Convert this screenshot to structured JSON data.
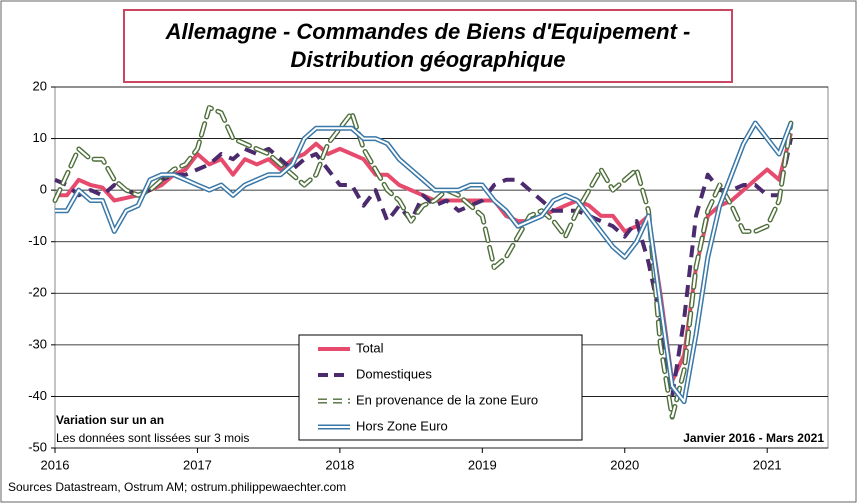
{
  "chart_data": {
    "type": "line",
    "title": [
      "Allemagne - Commandes de Biens d'Equipement -",
      "Distribution géographique"
    ],
    "categories": [
      "2016",
      null,
      null,
      null,
      null,
      null,
      null,
      null,
      null,
      null,
      null,
      null,
      "2017",
      null,
      null,
      null,
      null,
      null,
      null,
      null,
      null,
      null,
      null,
      null,
      "2018",
      null,
      null,
      null,
      null,
      null,
      null,
      null,
      null,
      null,
      null,
      null,
      "2019",
      null,
      null,
      null,
      null,
      null,
      null,
      null,
      null,
      null,
      null,
      null,
      "2020",
      null,
      null,
      null,
      null,
      null,
      null,
      null,
      null,
      null,
      null,
      null,
      "2021",
      null,
      null
    ],
    "series": [
      {
        "name": "Total",
        "color": "#e64b6e",
        "style": "solid",
        "values": [
          -1,
          -1,
          2,
          1,
          0.5,
          -2,
          -1.5,
          -1,
          0,
          1,
          3,
          4,
          7,
          5,
          6,
          3,
          6,
          5,
          6,
          4,
          6,
          7,
          9,
          7,
          8,
          7,
          6,
          3,
          3,
          1,
          0,
          -1,
          -2,
          -2,
          -2,
          -2,
          -2,
          -2,
          -5,
          -6,
          -6,
          -5,
          -4,
          -3,
          -2,
          -3,
          -5,
          -5,
          -8,
          -7,
          -5,
          -20,
          -37,
          -32,
          -15,
          -5,
          -3,
          -2,
          0,
          2,
          4,
          2,
          11
        ]
      },
      {
        "name": "Domestiques",
        "color": "#4b2a6e",
        "style": "dashed",
        "values": [
          2,
          1,
          -1,
          0,
          -1,
          1,
          0,
          -1,
          0,
          2,
          3,
          3,
          4,
          5,
          7,
          6,
          8,
          7,
          8,
          6,
          4,
          6,
          7,
          4,
          1,
          1,
          -3,
          0,
          -6,
          -3,
          -6,
          -1,
          -3,
          -2,
          -4,
          -3,
          -2,
          1,
          2,
          2,
          0,
          -2,
          -4,
          -4,
          -4,
          -5,
          -6,
          -7,
          -9,
          -6,
          -14,
          -25,
          -40,
          -25,
          -5,
          3,
          0,
          0,
          1,
          1,
          -1,
          -1,
          10
        ]
      },
      {
        "name": "En provenance de la zone Euro",
        "color": "#4e6e3a",
        "style": "outlined-dash",
        "values": [
          -2,
          3,
          8,
          6,
          6,
          2,
          0,
          -1,
          0,
          2,
          4,
          5,
          8,
          16,
          15,
          10,
          9,
          8,
          7,
          5,
          3,
          1,
          3,
          9,
          12,
          15,
          8,
          4,
          0,
          -2,
          -6,
          -3,
          -2,
          0,
          -1,
          -3,
          -5,
          -15,
          -13,
          -9,
          -5,
          -4,
          -6,
          -9,
          -4,
          0,
          4,
          0,
          2,
          4,
          -4,
          -30,
          -44,
          -35,
          -15,
          -4,
          1,
          -3,
          -8,
          -8,
          -7,
          -2,
          13
        ]
      },
      {
        "name": "Hors Zone Euro",
        "color": "#3a78a8",
        "style": "double",
        "values": [
          -4,
          -4,
          0,
          -2,
          -2,
          -8,
          -4,
          -3,
          2,
          3,
          3,
          2,
          1,
          0,
          1,
          -1,
          1,
          2,
          3,
          3,
          5,
          10,
          12,
          12,
          12,
          12,
          10,
          10,
          9,
          6,
          4,
          2,
          0,
          0,
          0,
          1,
          1,
          -2,
          -4,
          -7,
          -6,
          -5,
          -2,
          -1,
          -2,
          -5,
          -8,
          -11,
          -13,
          -10,
          -5,
          -22,
          -38,
          -41,
          -28,
          -13,
          -3,
          3,
          9,
          13,
          10,
          7,
          13
        ]
      }
    ],
    "ylim": [
      -50,
      20
    ],
    "yticks": [
      -50,
      -40,
      -30,
      -20,
      -10,
      0,
      10,
      20
    ],
    "grid": true,
    "annotations": [
      "Variation sur un an",
      "Les données sont lissées sur 3 mois",
      "Janvier 2016 - Mars 2021"
    ],
    "source": "Sources Datastream, Ostrum AM; ostrum.philippewaechter.com"
  }
}
